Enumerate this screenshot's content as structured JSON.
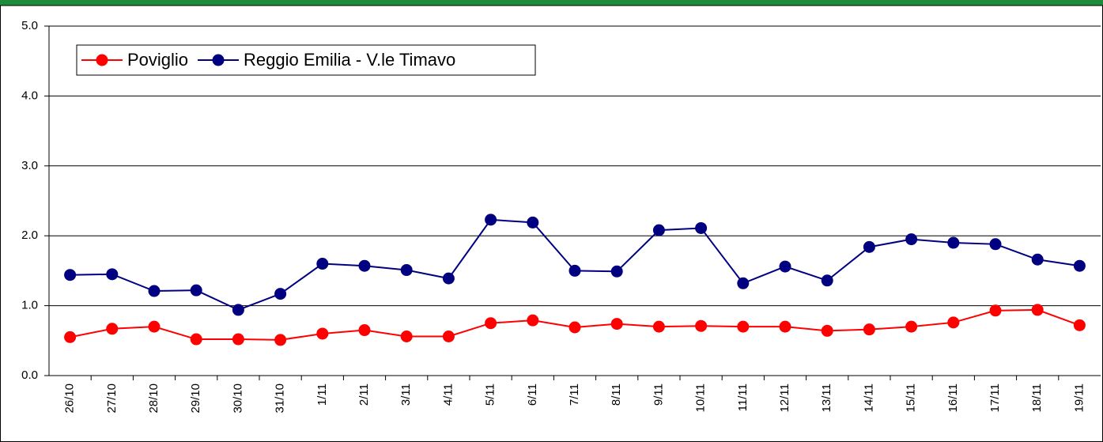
{
  "chart_data": {
    "type": "line",
    "categories": [
      "26/10",
      "27/10",
      "28/10",
      "29/10",
      "30/10",
      "31/10",
      "1/11",
      "2/11",
      "3/11",
      "4/11",
      "5/11",
      "6/11",
      "7/11",
      "8/11",
      "9/11",
      "10/11",
      "11/11",
      "12/11",
      "13/11",
      "14/11",
      "15/11",
      "16/11",
      "17/11",
      "18/11",
      "19/11"
    ],
    "series": [
      {
        "name": "Poviglio",
        "color": "#ff0000",
        "values": [
          0.55,
          0.67,
          0.7,
          0.52,
          0.52,
          0.51,
          0.6,
          0.65,
          0.56,
          0.56,
          0.75,
          0.79,
          0.69,
          0.74,
          0.7,
          0.71,
          0.7,
          0.7,
          0.64,
          0.66,
          0.7,
          0.76,
          0.93,
          0.94,
          0.72
        ]
      },
      {
        "name": "Reggio Emilia - V.le Timavo",
        "color": "#000080",
        "values": [
          1.44,
          1.45,
          1.21,
          1.22,
          0.94,
          1.17,
          1.6,
          1.57,
          1.51,
          1.39,
          2.23,
          2.19,
          1.5,
          1.49,
          2.08,
          2.11,
          1.32,
          1.56,
          1.36,
          1.84,
          1.95,
          1.9,
          1.88,
          1.66,
          1.57
        ]
      }
    ],
    "ylim": [
      0,
      5
    ],
    "yticks": [
      {
        "value": 0,
        "label": "0.0"
      },
      {
        "value": 1,
        "label": "1.0"
      },
      {
        "value": 2,
        "label": "2.0"
      },
      {
        "value": 3,
        "label": "3.0"
      },
      {
        "value": 4,
        "label": "4.0"
      },
      {
        "value": 5,
        "label": "5.0"
      }
    ],
    "grid": true
  }
}
